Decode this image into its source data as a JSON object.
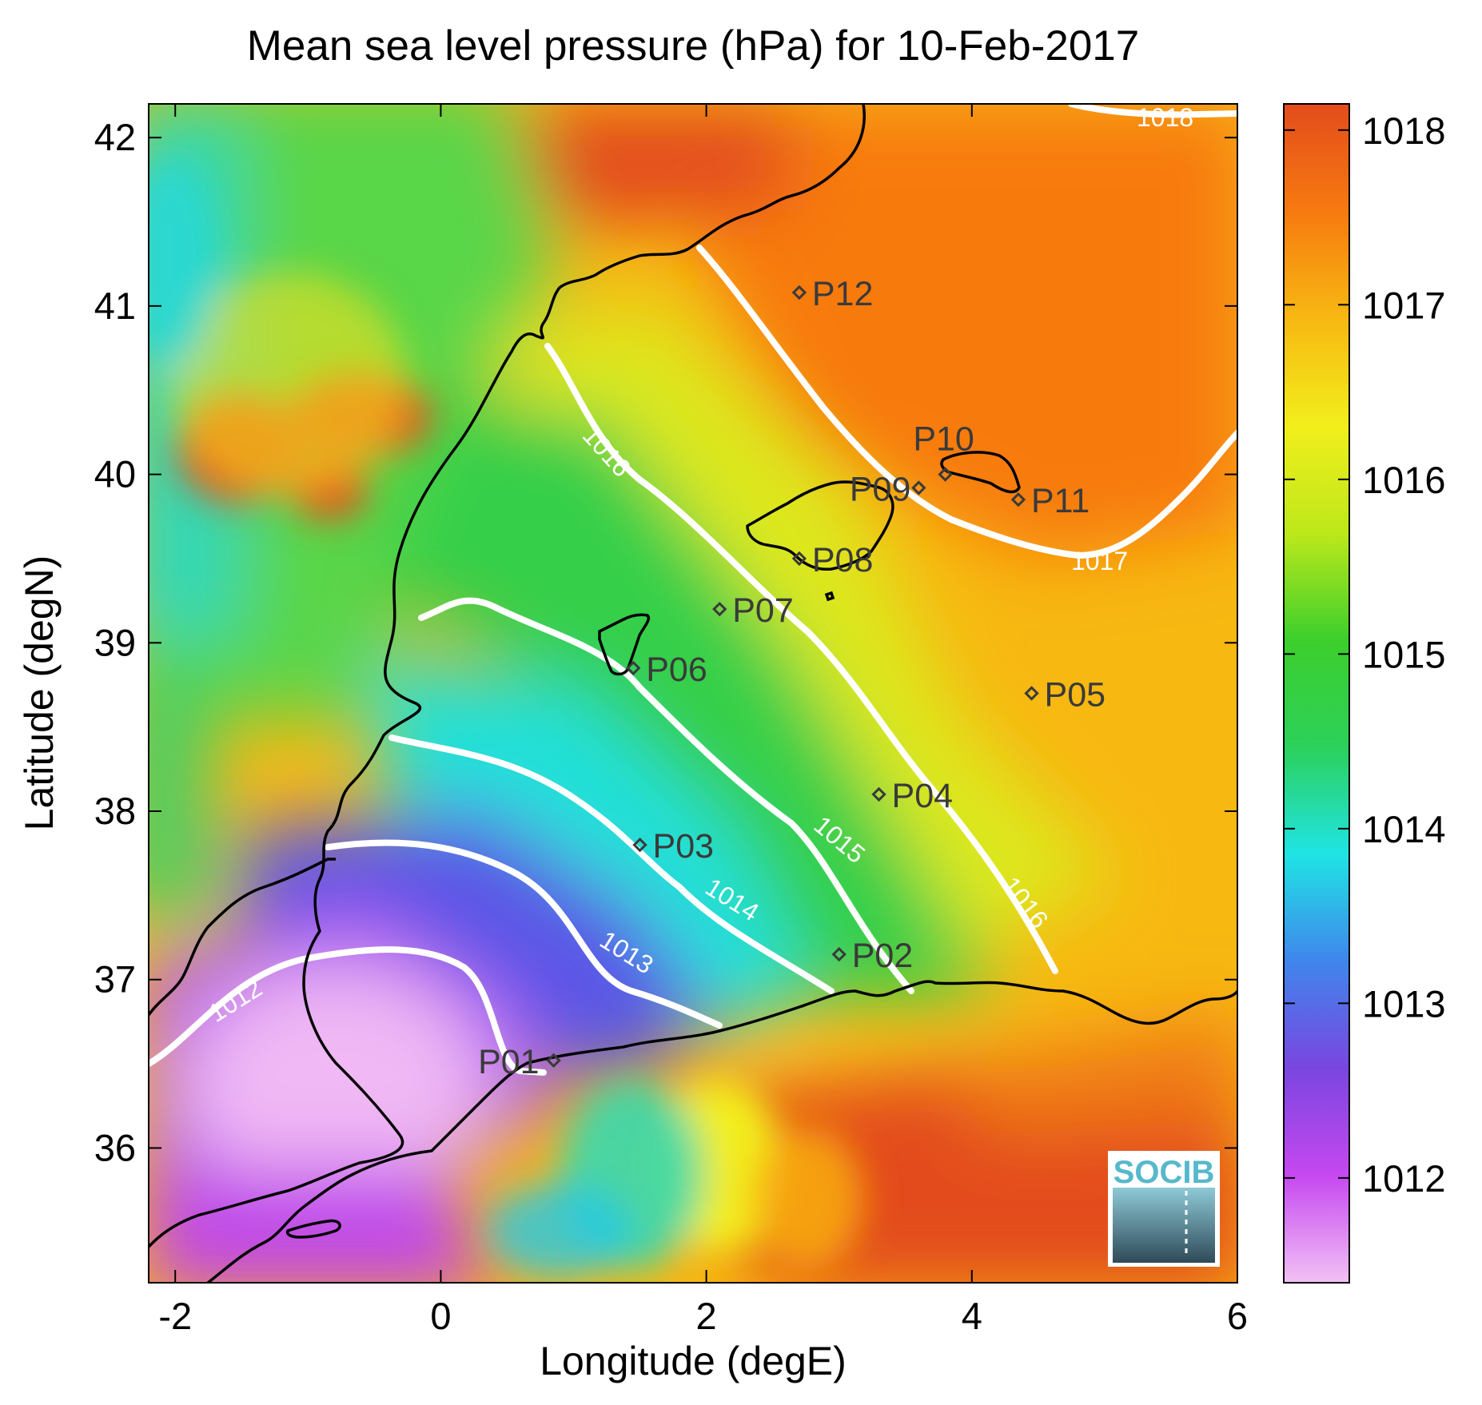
{
  "title": "Mean sea level pressure (hPa) for 10-Feb-2017",
  "x_axis": {
    "label": "Longitude (degE)",
    "min": -2.2,
    "max": 6.0,
    "ticks": [
      {
        "value": -2,
        "label": "-2"
      },
      {
        "value": 0,
        "label": "0"
      },
      {
        "value": 2,
        "label": "2"
      },
      {
        "value": 4,
        "label": "4"
      },
      {
        "value": 6,
        "label": "6"
      }
    ]
  },
  "y_axis": {
    "label": "Latitude (degN)",
    "min": 35.2,
    "max": 42.2,
    "ticks": [
      {
        "value": 36,
        "label": "36"
      },
      {
        "value": 37,
        "label": "37"
      },
      {
        "value": 38,
        "label": "38"
      },
      {
        "value": 39,
        "label": "39"
      },
      {
        "value": 40,
        "label": "40"
      },
      {
        "value": 41,
        "label": "41"
      },
      {
        "value": 42,
        "label": "42"
      }
    ]
  },
  "colorbar": {
    "min": 1011.4,
    "max": 1018.15,
    "ticks": [
      {
        "value": 1012,
        "label": "1012"
      },
      {
        "value": 1013,
        "label": "1013"
      },
      {
        "value": 1014,
        "label": "1014"
      },
      {
        "value": 1015,
        "label": "1015"
      },
      {
        "value": 1016,
        "label": "1016"
      },
      {
        "value": 1017,
        "label": "1017"
      },
      {
        "value": 1018,
        "label": "1018"
      }
    ],
    "colors": [
      "#f2c2f5",
      "#c648f0",
      "#7a46e0",
      "#3f86ec",
      "#20e4e4",
      "#2cd05a",
      "#3ccf2c",
      "#bde81a",
      "#f2ee1c",
      "#f7b812",
      "#f77a10",
      "#e34c1c"
    ]
  },
  "contour_labels": [
    {
      "text": "1012"
    },
    {
      "text": "1013"
    },
    {
      "text": "1014"
    },
    {
      "text": "1015"
    },
    {
      "text": "1016"
    },
    {
      "text": "1016"
    },
    {
      "text": "1017"
    },
    {
      "text": "1018"
    }
  ],
  "stations": [
    {
      "name": "P01",
      "lon": 0.85,
      "lat": 36.52
    },
    {
      "name": "P02",
      "lon": 3.0,
      "lat": 37.15
    },
    {
      "name": "P03",
      "lon": 1.5,
      "lat": 37.8
    },
    {
      "name": "P04",
      "lon": 3.3,
      "lat": 38.1
    },
    {
      "name": "P05",
      "lon": 4.45,
      "lat": 38.7
    },
    {
      "name": "P06",
      "lon": 1.45,
      "lat": 38.85
    },
    {
      "name": "P07",
      "lon": 2.1,
      "lat": 39.2
    },
    {
      "name": "P08",
      "lon": 2.7,
      "lat": 39.5
    },
    {
      "name": "P09",
      "lon": 3.6,
      "lat": 39.92
    },
    {
      "name": "P10",
      "lon": 3.8,
      "lat": 40.0
    },
    {
      "name": "P11",
      "lon": 4.35,
      "lat": 39.85
    },
    {
      "name": "P12",
      "lon": 2.7,
      "lat": 41.08
    }
  ],
  "logo": {
    "text": "SOCIB",
    "color": "#56b8cc"
  }
}
